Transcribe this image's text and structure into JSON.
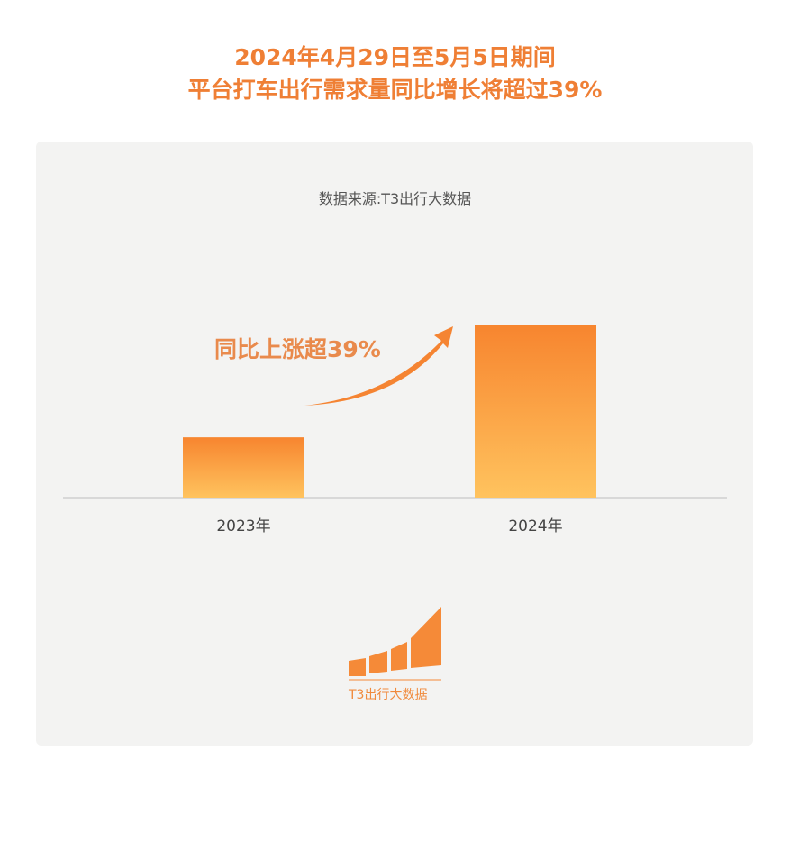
{
  "header": {
    "title_line1": "2024年4月29日至5月5日期间",
    "title_line2": "平台打车出行需求量同比增长将超过39%"
  },
  "source": "数据来源:T3出行大数据",
  "logo": {
    "text": "T3出行大数据",
    "color": "#f08a3c"
  },
  "chart_data": {
    "type": "bar",
    "categories": [
      "2023年",
      "2024年"
    ],
    "values": [
      35,
      100
    ],
    "value_note": "relative bar heights (no axis printed)",
    "annotation": "同比上涨超39%",
    "colors": {
      "top": "#f7852f",
      "bottom": "#ffc35e"
    },
    "grid": false
  }
}
